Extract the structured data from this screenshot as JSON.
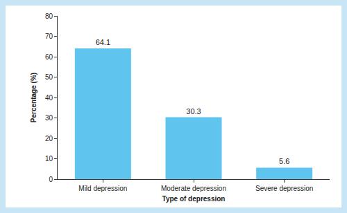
{
  "chart_data": {
    "type": "bar",
    "categories": [
      "Mild depression",
      "Moderate depression",
      "Severe depression"
    ],
    "values": [
      64.1,
      30.3,
      5.6
    ],
    "color": "#5fc4ee",
    "x_label": "Type of depression",
    "y_label": "Percentage (%)",
    "ylim": [
      0,
      80
    ],
    "yticks": [
      0,
      10,
      20,
      30,
      40,
      50,
      60,
      70,
      80
    ],
    "grid": false,
    "data_labels": true
  }
}
